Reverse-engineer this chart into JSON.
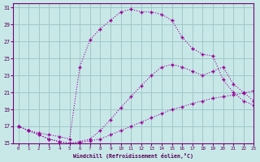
{
  "xlabel": "Windchill (Refroidissement éolien,°C)",
  "background_color": "#c8e8e8",
  "grid_color": "#a0c8c8",
  "line_color": "#990099",
  "xlim": [
    -0.5,
    23
  ],
  "ylim": [
    15,
    31.5
  ],
  "yticks": [
    15,
    17,
    19,
    21,
    23,
    25,
    27,
    29,
    31
  ],
  "xticks": [
    0,
    1,
    2,
    3,
    4,
    5,
    6,
    7,
    8,
    9,
    10,
    11,
    12,
    13,
    14,
    15,
    16,
    17,
    18,
    19,
    20,
    21,
    22,
    23
  ],
  "series_top_x": [
    0,
    1,
    2,
    3,
    4,
    5,
    6,
    7,
    8,
    9,
    10,
    11,
    12,
    13,
    14,
    15,
    16,
    17,
    18,
    19,
    20,
    21,
    22,
    23
  ],
  "series_top_y": [
    17.0,
    16.5,
    16.2,
    16.0,
    15.8,
    15.5,
    24.0,
    27.2,
    28.5,
    29.5,
    30.5,
    30.8,
    30.5,
    30.5,
    30.2,
    29.5,
    27.5,
    26.2,
    25.5,
    25.3,
    22.5,
    21.0,
    20.0,
    19.5
  ],
  "series_mid_x": [
    0,
    1,
    2,
    3,
    4,
    5,
    6,
    7,
    8,
    9,
    10,
    11,
    12,
    13,
    14,
    15,
    16,
    17,
    18,
    19,
    20,
    21,
    22,
    23
  ],
  "series_mid_y": [
    17.0,
    16.5,
    16.0,
    15.5,
    15.2,
    15.0,
    15.2,
    15.5,
    16.5,
    17.8,
    19.2,
    20.5,
    21.8,
    23.0,
    24.0,
    24.3,
    24.0,
    23.5,
    23.0,
    23.5,
    24.0,
    22.0,
    21.0,
    20.0
  ],
  "series_bot_x": [
    0,
    1,
    2,
    3,
    4,
    5,
    6,
    7,
    8,
    9,
    10,
    11,
    12,
    13,
    14,
    15,
    16,
    17,
    18,
    19,
    20,
    21,
    22,
    23
  ],
  "series_bot_y": [
    17.0,
    16.5,
    16.0,
    15.5,
    15.2,
    15.0,
    15.1,
    15.3,
    15.5,
    16.0,
    16.5,
    17.0,
    17.5,
    18.0,
    18.5,
    19.0,
    19.3,
    19.7,
    20.0,
    20.3,
    20.5,
    20.7,
    20.9,
    21.2
  ]
}
